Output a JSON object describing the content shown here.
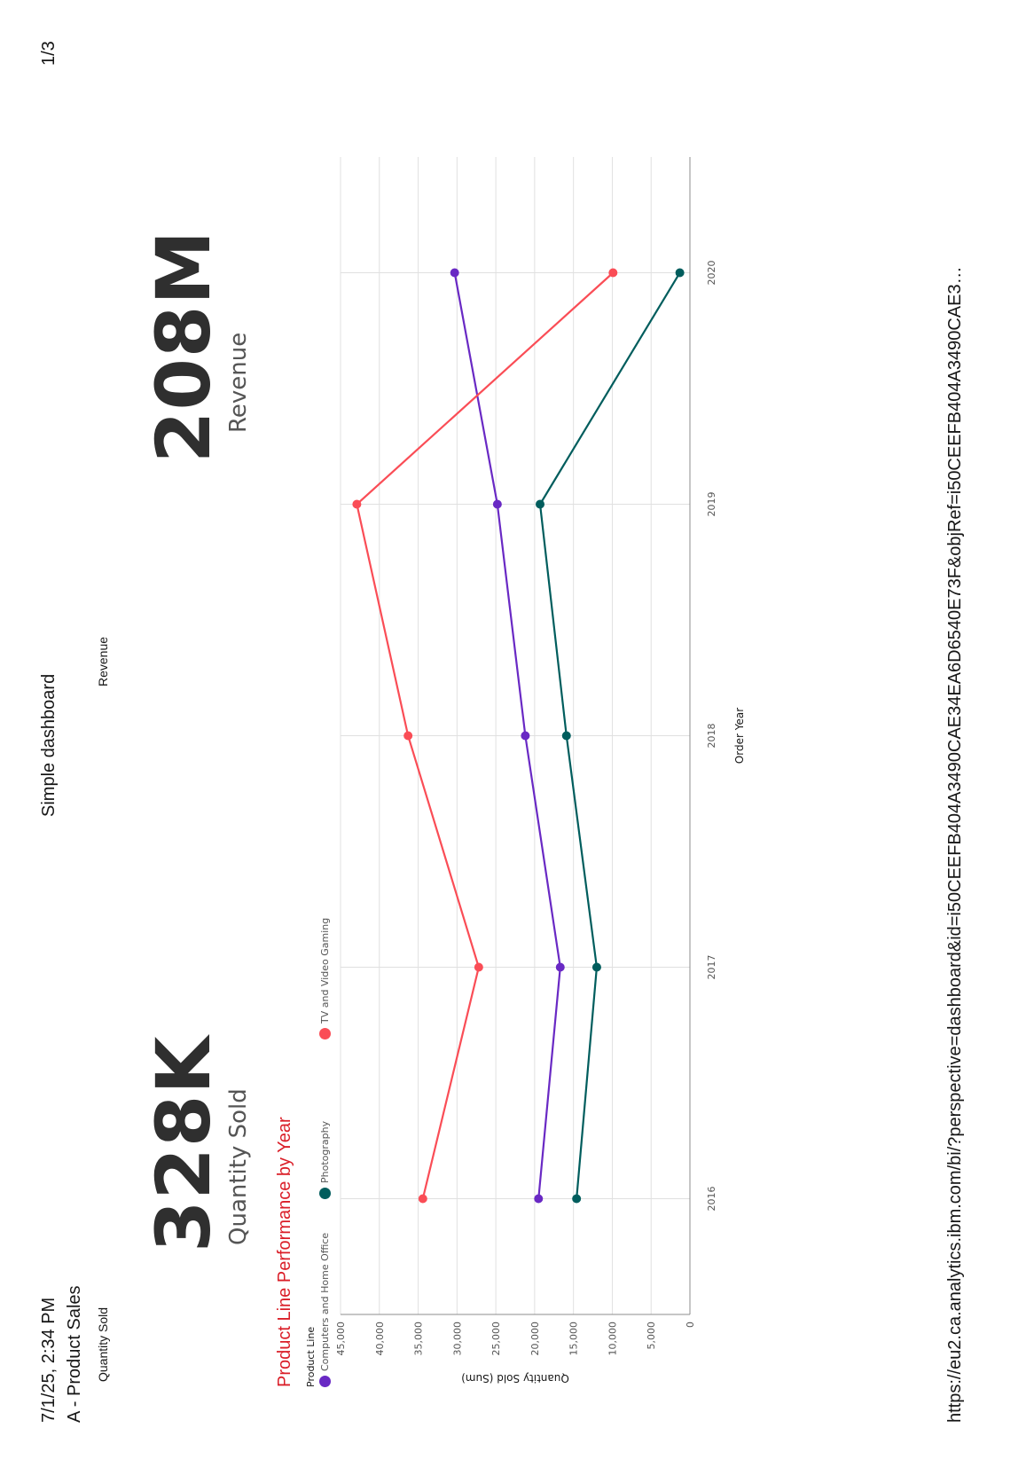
{
  "header": {
    "timestamp": "7/1/25, 2:34 PM",
    "title": "Simple dashboard",
    "page_number": "1/3"
  },
  "tab_name": "A - Product Sales",
  "kpis": [
    {
      "card_title": "Quantity Sold",
      "value": "328K",
      "label": "Quantity Sold"
    },
    {
      "card_title": "Revenue",
      "value": "208M",
      "label": "Revenue"
    }
  ],
  "footer": {
    "url": "https://eu2.ca.analytics.ibm.com/bi/?perspective=dashboard&id=i50CEEFB404A3490CAE34EA6D6540E73F&objRef=i50CEEFB404A3490CAE3…"
  },
  "chart_data": {
    "type": "line",
    "title": "Product Line Performance by Year",
    "xlabel": "Order Year",
    "ylabel": "Quantity Sold (Sum)",
    "legend_title": "Product Line",
    "legend_position": "top-left",
    "grid": true,
    "x": [
      "2016",
      "2017",
      "2018",
      "2019",
      "2020"
    ],
    "ylim": [
      0,
      45000
    ],
    "yticks": [
      "0",
      "5,000",
      "10,000",
      "15,000",
      "20,000",
      "25,000",
      "30,000",
      "35,000",
      "40,000",
      "45,000"
    ],
    "series": [
      {
        "name": "Computers and Home Office",
        "color": "#6929c4",
        "values": [
          19500,
          16700,
          21200,
          24800,
          30300
        ]
      },
      {
        "name": "Photography",
        "color": "#005d5d",
        "values": [
          14600,
          12000,
          15900,
          19300,
          1300
        ]
      },
      {
        "name": "TV and Video Gaming",
        "color": "#fa4d56",
        "values": [
          34400,
          27200,
          36300,
          42900,
          9900
        ]
      }
    ]
  }
}
